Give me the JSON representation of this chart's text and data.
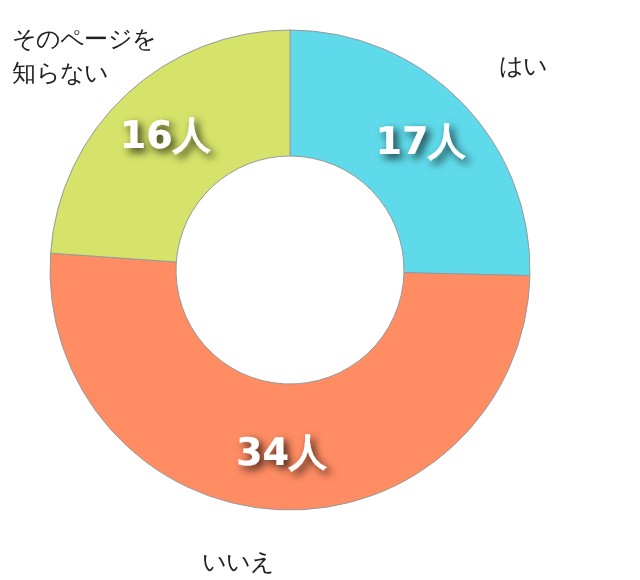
{
  "chart_data": {
    "type": "donut",
    "categories": [
      "はい",
      "いいえ",
      "そのページを知らない"
    ],
    "values": [
      17,
      34,
      16
    ],
    "colors": [
      "#5fdaea",
      "#ff8c63",
      "#d5e36a"
    ],
    "value_labels": [
      "17人",
      "34人",
      "16人"
    ]
  }
}
